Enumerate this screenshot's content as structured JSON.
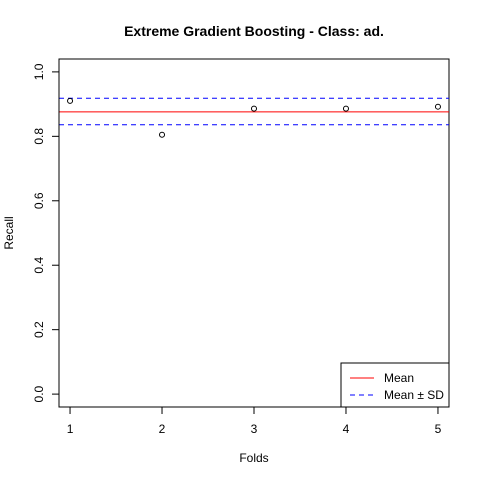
{
  "chart_data": {
    "type": "scatter",
    "title": "Extreme Gradient Boosting - Class: ad.",
    "xlabel": "Folds",
    "ylabel": "Recall",
    "x": [
      1,
      2,
      3,
      4,
      5
    ],
    "y": [
      0.91,
      0.805,
      0.886,
      0.886,
      0.892
    ],
    "xlim": [
      0.88,
      5.12
    ],
    "ylim": [
      -0.04,
      1.04
    ],
    "x_ticks": [
      1,
      2,
      3,
      4,
      5
    ],
    "x_tick_labels": [
      "1",
      "2",
      "3",
      "4",
      "5"
    ],
    "y_ticks": [
      0.0,
      0.2,
      0.4,
      0.6,
      0.8,
      1.0
    ],
    "y_tick_labels": [
      "0.0",
      "0.2",
      "0.4",
      "0.6",
      "0.8",
      "1.0"
    ],
    "mean": 0.876,
    "mean_plus_sd": 0.918,
    "mean_minus_sd": 0.836,
    "grid": false,
    "legend_position": "bottom-right",
    "legend": [
      {
        "label": "Mean",
        "color": "#ff0000",
        "dash": false
      },
      {
        "label": "Mean ± SD",
        "color": "#0000ff",
        "dash": true
      }
    ],
    "colors": {
      "points": "#000000",
      "mean": "#ff0000",
      "sd": "#0000ff"
    }
  }
}
